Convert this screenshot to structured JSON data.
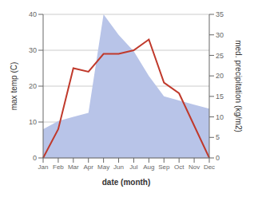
{
  "chart_data": {
    "type": "line",
    "categories": [
      "Jan",
      "Feb",
      "Mar",
      "Apr",
      "May",
      "Jun",
      "Jul",
      "Aug",
      "Sep",
      "Oct",
      "Nov",
      "Dec"
    ],
    "series": [
      {
        "type": "area",
        "color": "#b8c4e8",
        "axis": "y2",
        "values": [
          7,
          9,
          10,
          11,
          35,
          30,
          26,
          20,
          15,
          14,
          13,
          12
        ]
      },
      {
        "type": "line",
        "color": "#c0392b",
        "values": [
          0,
          8,
          25,
          24,
          29,
          29,
          30,
          33,
          21,
          18,
          9,
          0
        ]
      }
    ],
    "xlabel": "date (month)",
    "ylabel": "max temp (C)",
    "y2label": "med. precipitation (kg/m2)",
    "ylim": [
      0,
      40
    ],
    "yticks": [
      0,
      10,
      20,
      30,
      40
    ],
    "y2lim": [
      0,
      35
    ],
    "y2ticks": [
      0,
      5,
      10,
      15,
      20,
      25,
      30,
      35
    ],
    "grid": true
  }
}
